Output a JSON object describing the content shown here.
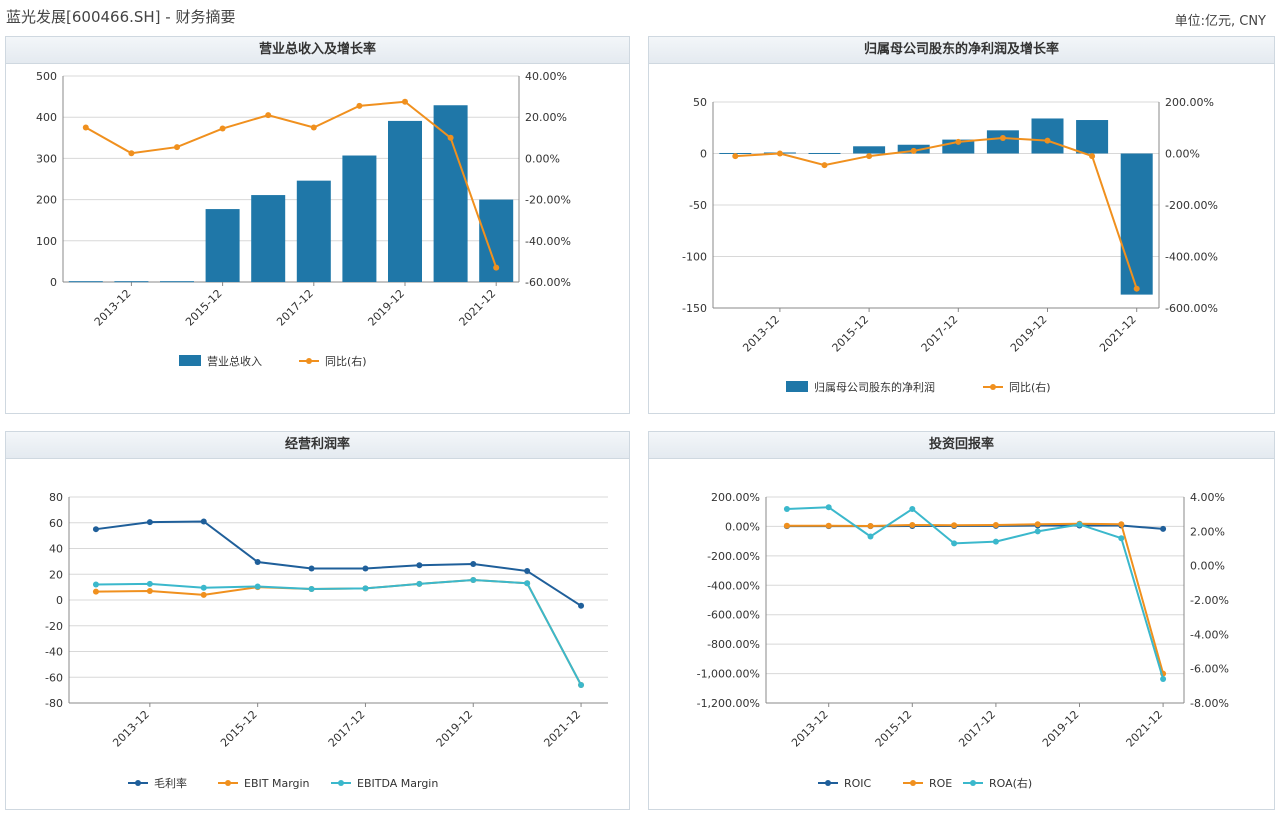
{
  "header": {
    "title": "蓝光发展[600466.SH] - 财务摘要",
    "unit": "单位:亿元, CNY"
  },
  "colors": {
    "blue": "#1f77a8",
    "orange": "#f0901e",
    "teal": "#3bb8cc",
    "dark_blue": "#1f5f9a",
    "grid": "#d8d8d8"
  },
  "chart_data": [
    {
      "type": "bar",
      "title": "营业总收入及增长率",
      "categories": [
        "2012-12",
        "2013-12",
        "2014-12",
        "2015-12",
        "2016-12",
        "2017-12",
        "2018-12",
        "2019-12",
        "2020-12",
        "2021-12"
      ],
      "tick_labels": [
        "2013-12",
        "2015-12",
        "2017-12",
        "2019-12",
        "2021-12"
      ],
      "series": [
        {
          "name": "营业总收入",
          "type": "bar",
          "axis": "left",
          "values": [
            2,
            2,
            2,
            177,
            211,
            246,
            307,
            391,
            429,
            200
          ]
        },
        {
          "name": "同比(右)",
          "type": "line",
          "axis": "right",
          "values": [
            15,
            2.5,
            5.5,
            14.5,
            21,
            15,
            25.5,
            27.5,
            10,
            -53
          ]
        }
      ],
      "ylim": [
        0,
        500
      ],
      "y_ticks": [
        "500",
        "400",
        "300",
        "200",
        "100",
        "0"
      ],
      "y2lim": [
        -60,
        40
      ],
      "y2_ticks": [
        "40.00%",
        "20.00%",
        "0.00%",
        "-20.00%",
        "-40.00%",
        "-60.00%"
      ],
      "grid": true,
      "legend": "bottom"
    },
    {
      "type": "bar",
      "title": "归属母公司股东的净利润及增长率",
      "categories": [
        "2012-12",
        "2013-12",
        "2014-12",
        "2015-12",
        "2016-12",
        "2017-12",
        "2018-12",
        "2019-12",
        "2020-12",
        "2021-12"
      ],
      "tick_labels": [
        "2013-12",
        "2015-12",
        "2017-12",
        "2019-12",
        "2021-12"
      ],
      "series": [
        {
          "name": "归属母公司股东的净利润",
          "type": "bar",
          "axis": "left",
          "values": [
            0.5,
            1,
            0.5,
            7,
            8.5,
            13.5,
            22.5,
            34,
            32.5,
            -137
          ]
        },
        {
          "name": "同比(右)",
          "type": "line",
          "axis": "right",
          "values": [
            -10,
            0,
            -45,
            -10,
            10,
            45,
            60,
            50,
            -10,
            -525
          ]
        }
      ],
      "ylim": [
        -150,
        50
      ],
      "y_ticks": [
        "50",
        "0",
        "-50",
        "-100",
        "-150"
      ],
      "y2lim": [
        -600,
        200
      ],
      "y2_ticks": [
        "200.00%",
        "0.00%",
        "-200.00%",
        "-400.00%",
        "-600.00%"
      ],
      "grid": true,
      "legend": "bottom"
    },
    {
      "type": "line",
      "title": "经营利润率",
      "categories": [
        "2012-12",
        "2013-12",
        "2014-12",
        "2015-12",
        "2016-12",
        "2017-12",
        "2018-12",
        "2019-12",
        "2020-12",
        "2021-12"
      ],
      "tick_labels": [
        "2013-12",
        "2015-12",
        "2017-12",
        "2019-12",
        "2021-12"
      ],
      "series": [
        {
          "name": "毛利率",
          "axis": "left",
          "values": [
            55,
            60.5,
            61,
            29.5,
            24.5,
            24.5,
            27,
            28,
            22.5,
            -4.5
          ]
        },
        {
          "name": "EBIT Margin",
          "axis": "left",
          "values": [
            6.5,
            7,
            4,
            10,
            8.5,
            9,
            12.5,
            15.5,
            13,
            -66
          ]
        },
        {
          "name": "EBITDA Margin",
          "axis": "left",
          "values": [
            12,
            12.5,
            9.5,
            10.5,
            8.5,
            9,
            12.5,
            15.5,
            13,
            -66
          ]
        }
      ],
      "ylim": [
        -80,
        80
      ],
      "y_ticks": [
        "80",
        "60",
        "40",
        "20",
        "0",
        "-20",
        "-40",
        "-60",
        "-80"
      ],
      "grid": true,
      "legend": "bottom"
    },
    {
      "type": "line",
      "title": "投资回报率",
      "categories": [
        "2012-12",
        "2013-12",
        "2014-12",
        "2015-12",
        "2016-12",
        "2017-12",
        "2018-12",
        "2019-12",
        "2020-12",
        "2021-12"
      ],
      "tick_labels": [
        "2013-12",
        "2015-12",
        "2017-12",
        "2019-12",
        "2021-12"
      ],
      "series": [
        {
          "name": "ROIC",
          "axis": "left",
          "values": [
            2,
            2,
            2,
            3,
            3,
            4,
            6,
            6,
            6,
            -17
          ]
        },
        {
          "name": "ROE",
          "axis": "left",
          "values": [
            5,
            5,
            3,
            10,
            8,
            10,
            15,
            18,
            15,
            -1000
          ]
        },
        {
          "name": "ROA(右)",
          "axis": "right",
          "values": [
            3.3,
            3.4,
            1.7,
            3.3,
            1.3,
            1.4,
            2.0,
            2.4,
            1.6,
            -6.6
          ]
        }
      ],
      "ylim": [
        -1200,
        200
      ],
      "y_ticks": [
        "200.00%",
        "0.00%",
        "-200.00%",
        "-400.00%",
        "-600.00%",
        "-800.00%",
        "-1,000.00%",
        "-1,200.00%"
      ],
      "y2lim": [
        -8,
        4
      ],
      "y2_ticks": [
        "4.00%",
        "2.00%",
        "0.00%",
        "-2.00%",
        "-4.00%",
        "-6.00%",
        "-8.00%"
      ],
      "grid": true,
      "legend": "bottom"
    }
  ]
}
